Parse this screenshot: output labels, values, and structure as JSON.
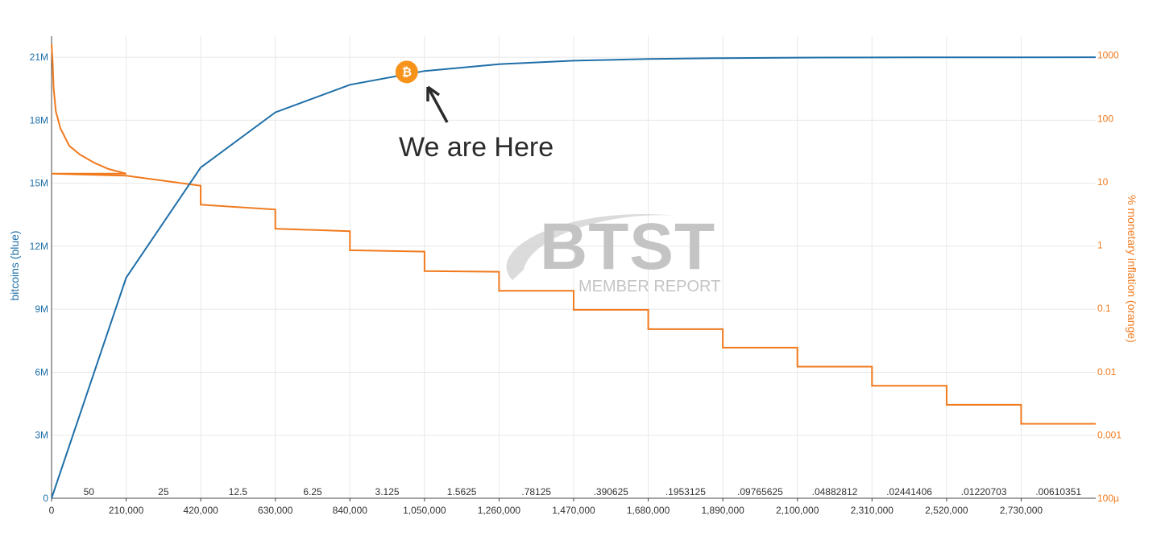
{
  "colors": {
    "bitcoins": "#1f6fa8",
    "inflation": "#f07a1e",
    "grid": "#e8e8e8",
    "marker": "#f7931a"
  },
  "annotation": {
    "text": "We are Here",
    "marker_icon": "bitcoin-icon",
    "marker_glyph": "₿",
    "marker_x": 1000000,
    "marker_y": 20300000
  },
  "watermark": {
    "logo_text": "BTST",
    "subtitle": "MEMBER REPORT"
  },
  "chart_data": {
    "type": "line",
    "x_type": "block height",
    "grid": true,
    "legend": "none",
    "xlabel": "",
    "ylabel": "bitcoins (blue)",
    "y2label": "% monetary inflation (orange)",
    "xlim": [
      0,
      2940000
    ],
    "ylim": [
      0,
      22000000
    ],
    "y2lim": [
      0.0001,
      2000
    ],
    "y2scale": "log",
    "x_tick_values": [
      0,
      210000,
      420000,
      630000,
      840000,
      1050000,
      1260000,
      1470000,
      1680000,
      1890000,
      2100000,
      2310000,
      2520000,
      2730000
    ],
    "x_tick_labels": [
      "0",
      "210,000",
      "420,000",
      "630,000",
      "840,000",
      "1,050,000",
      "1,260,000",
      "1,470,000",
      "1,680,000",
      "1,890,000",
      "2,100,000",
      "2,310,000",
      "2,520,000",
      "2,730,000"
    ],
    "y_tick_values": [
      0,
      3000000,
      6000000,
      9000000,
      12000000,
      15000000,
      18000000,
      21000000
    ],
    "y_tick_labels": [
      "0",
      "3M",
      "6M",
      "9M",
      "12M",
      "15M",
      "18M",
      "21M"
    ],
    "y2_tick_values": [
      0.0001,
      0.001,
      0.01,
      0.1,
      1,
      10,
      100,
      1000
    ],
    "y2_tick_labels": [
      "100µ",
      "0.001",
      "0.01",
      "0.1",
      "1",
      "10",
      "100",
      "1000"
    ],
    "block_rewards": {
      "labels": [
        "50",
        "25",
        "12.5",
        "6.25",
        "3.125",
        "1.5625",
        ".78125",
        ".390625",
        ".1953125",
        ".09765625",
        ".04882812",
        ".02441406",
        ".01220703",
        ".00610351"
      ]
    },
    "series": [
      {
        "name": "bitcoins",
        "axis": "left",
        "x": [
          0,
          210000,
          420000,
          630000,
          840000,
          1050000,
          1260000,
          1470000,
          1680000,
          1890000,
          2100000,
          2310000,
          2520000,
          2730000,
          2940000
        ],
        "values": [
          0,
          10500000,
          15750000,
          18375000,
          19687500,
          20343750,
          20671875,
          20835938,
          20917969,
          20958984,
          20979492,
          20989746,
          20994873,
          20997437,
          20998718
        ]
      },
      {
        "name": "inflation",
        "axis": "right",
        "type": "step",
        "x_start": 0,
        "epoch_length": 210000,
        "initial": 1500,
        "curve_first_epoch": [
          [
            0,
            1500
          ],
          [
            3000,
            800
          ],
          [
            6000,
            300
          ],
          [
            12000,
            130
          ],
          [
            25000,
            70
          ],
          [
            50000,
            37
          ],
          [
            80000,
            27
          ],
          [
            120000,
            20
          ],
          [
            160000,
            16
          ],
          [
            209999,
            13.5
          ]
        ],
        "epochs": [
          {
            "start": 13.5,
            "end": 13.5
          },
          {
            "start": 12.5,
            "end": 8.7
          },
          {
            "start": 4.35,
            "end": 3.65
          },
          {
            "start": 1.82,
            "end": 1.66
          },
          {
            "start": 0.83,
            "end": 0.79
          },
          {
            "start": 0.39,
            "end": 0.38
          },
          {
            "start": 0.19,
            "end": 0.19
          },
          {
            "start": 0.095,
            "end": 0.095
          },
          {
            "start": 0.047,
            "end": 0.047
          },
          {
            "start": 0.024,
            "end": 0.024
          },
          {
            "start": 0.012,
            "end": 0.012
          },
          {
            "start": 0.006,
            "end": 0.006
          },
          {
            "start": 0.003,
            "end": 0.003
          },
          {
            "start": 0.0015,
            "end": 0.0015
          }
        ]
      }
    ]
  }
}
